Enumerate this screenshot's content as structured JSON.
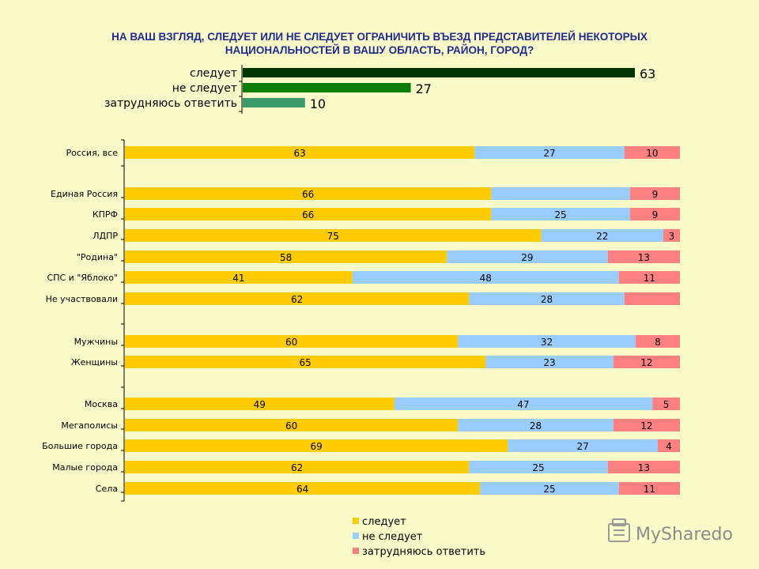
{
  "title_lines": [
    "НА ВАШ ВЗГЛЯД, СЛЕДУЕТ ИЛИ НЕ СЛЕДУЕТ ОГРАНИЧИТЬ ВЪЕЗД ПРЕДСТАВИТЕЛЕЙ НЕКОТОРЫХ",
    "НАЦИОНАЛЬНОСТЕЙ В ВАШУ ОБЛАСТЬ, РАЙОН, ГОРОД?"
  ],
  "logo_text": "MySharedo",
  "chart_data": [
    {
      "type": "bar",
      "orientation": "horizontal",
      "title": "НА ВАШ ВЗГЛЯД, СЛЕДУЕТ ИЛИ НЕ СЛЕДУЕТ ОГРАНИЧИТЬ ВЪЕЗД ПРЕДСТАВИТЕЛЕЙ НЕКОТОРЫХ НАЦИОНАЛЬНОСТЕЙ В ВАШУ ОБЛАСТЬ, РАЙОН, ГОРОД?",
      "categories": [
        "следует",
        "не следует",
        "затрудняюсь ответить"
      ],
      "values": [
        63,
        27,
        10
      ],
      "colors": [
        "#003300",
        "#0b7d0b",
        "#3c9a6a"
      ],
      "xlim": [
        0,
        63
      ]
    },
    {
      "type": "bar",
      "orientation": "horizontal",
      "stacked": true,
      "groups": [
        [
          "Россия, все"
        ],
        [
          "Единая Россия",
          "КПРФ",
          "ЛДПР",
          "\"Родина\"",
          "СПС и \"Яблоко\"",
          "Не участвовали"
        ],
        [
          "Мужчины",
          "Женщины"
        ],
        [
          "Москва",
          "Мегаполисы",
          "Большие города",
          "Малые города",
          "Села"
        ]
      ],
      "categories": [
        "Россия, все",
        "Единая Россия",
        "КПРФ",
        "ЛДПР",
        "\"Родина\"",
        "СПС и \"Яблоко\"",
        "Не участвовали",
        "Мужчины",
        "Женщины",
        "Москва",
        "Мегаполисы",
        "Большие города",
        "Малые города",
        "Села"
      ],
      "series": [
        {
          "name": "следует",
          "color": "#ffcc00",
          "values": [
            63,
            66,
            66,
            75,
            58,
            41,
            62,
            60,
            65,
            49,
            60,
            69,
            62,
            64
          ]
        },
        {
          "name": "не следует",
          "color": "#99ccff",
          "values": [
            27,
            25,
            25,
            22,
            29,
            48,
            28,
            32,
            23,
            47,
            28,
            27,
            25,
            25
          ]
        },
        {
          "name": "затрудняюсь ответить",
          "color": "#ff8080",
          "values": [
            10,
            9,
            9,
            3,
            13,
            11,
            10,
            8,
            12,
            5,
            12,
            4,
            13,
            11
          ]
        }
      ],
      "labels": [
        [
          "63",
          "27",
          "10"
        ],
        [
          "66",
          "",
          "9"
        ],
        [
          "66",
          "25",
          "9"
        ],
        [
          "75",
          "22",
          "3"
        ],
        [
          "58",
          "29",
          "13"
        ],
        [
          "41",
          "48",
          "11"
        ],
        [
          "62",
          "28",
          ""
        ],
        [
          "60",
          "32",
          "8"
        ],
        [
          "65",
          "23",
          "12"
        ],
        [
          "49",
          "47",
          "5"
        ],
        [
          "60",
          "28",
          "12"
        ],
        [
          "69",
          "27",
          "4"
        ],
        [
          "62",
          "25",
          "13"
        ],
        [
          "64",
          "25",
          "11"
        ]
      ],
      "legend": [
        "следует",
        "не следует",
        "затрудняюсь ответить"
      ],
      "legend_position": "bottom"
    }
  ]
}
